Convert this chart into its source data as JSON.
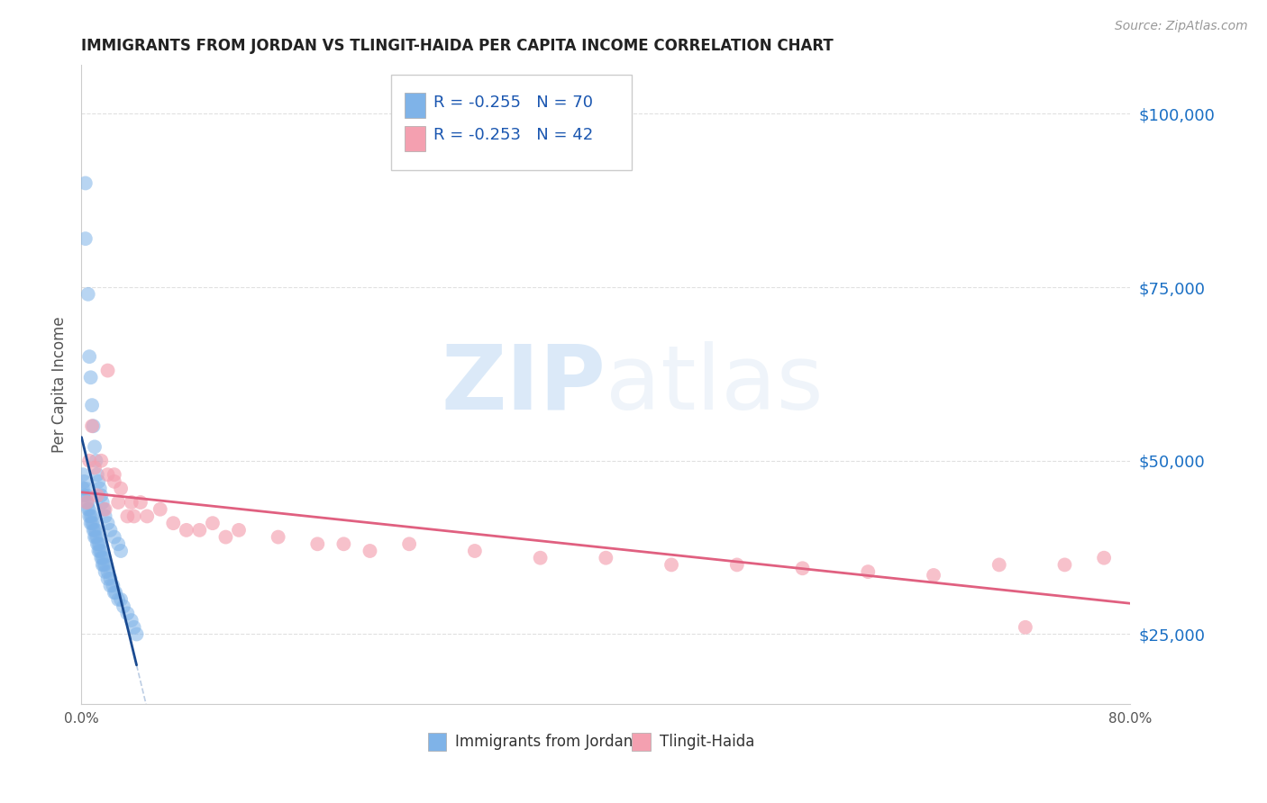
{
  "title": "IMMIGRANTS FROM JORDAN VS TLINGIT-HAIDA PER CAPITA INCOME CORRELATION CHART",
  "source": "Source: ZipAtlas.com",
  "ylabel": "Per Capita Income",
  "series1_label": "Immigrants from Jordan",
  "series2_label": "Tlingit-Haida",
  "series1_color": "#7fb3e8",
  "series2_color": "#f4a0b0",
  "series1_line_color": "#1a4a90",
  "series2_line_color": "#e06080",
  "series1_R": -0.255,
  "series1_N": 70,
  "series2_R": -0.253,
  "series2_N": 42,
  "legend_color": "#1a56b0",
  "background_color": "#ffffff",
  "grid_color": "#dddddd",
  "right_ytick_color": "#1a6fc4",
  "xlim": [
    0.0,
    0.8
  ],
  "ylim": [
    15000,
    107000
  ],
  "right_yticks": [
    25000,
    50000,
    75000,
    100000
  ],
  "right_yticklabels": [
    "$25,000",
    "$50,000",
    "$75,000",
    "$100,000"
  ],
  "jordan_x": [
    0.003,
    0.003,
    0.005,
    0.006,
    0.007,
    0.008,
    0.009,
    0.01,
    0.011,
    0.012,
    0.013,
    0.014,
    0.015,
    0.016,
    0.017,
    0.018,
    0.02,
    0.022,
    0.025,
    0.028,
    0.03,
    0.001,
    0.001,
    0.002,
    0.002,
    0.003,
    0.004,
    0.004,
    0.005,
    0.005,
    0.006,
    0.006,
    0.007,
    0.007,
    0.008,
    0.008,
    0.009,
    0.009,
    0.01,
    0.01,
    0.011,
    0.011,
    0.012,
    0.012,
    0.013,
    0.013,
    0.014,
    0.014,
    0.015,
    0.015,
    0.016,
    0.016,
    0.017,
    0.017,
    0.018,
    0.018,
    0.02,
    0.02,
    0.022,
    0.022,
    0.024,
    0.025,
    0.026,
    0.028,
    0.03,
    0.032,
    0.035,
    0.038,
    0.04,
    0.042
  ],
  "jordan_y": [
    90000,
    82000,
    74000,
    65000,
    62000,
    58000,
    55000,
    52000,
    50000,
    48000,
    47000,
    46000,
    45000,
    44000,
    43000,
    42000,
    41000,
    40000,
    39000,
    38000,
    37000,
    48000,
    46000,
    47000,
    45000,
    46000,
    44000,
    45000,
    43000,
    44000,
    43000,
    42000,
    42000,
    41000,
    41000,
    42000,
    40000,
    41000,
    40000,
    39000,
    39000,
    40000,
    38000,
    39000,
    38000,
    37000,
    37000,
    38000,
    36000,
    37000,
    36000,
    35000,
    35000,
    36000,
    34000,
    35000,
    34000,
    33000,
    33000,
    32000,
    32000,
    31000,
    31000,
    30000,
    30000,
    29000,
    28000,
    27000,
    26000,
    25000
  ],
  "tlingit_x": [
    0.004,
    0.006,
    0.008,
    0.01,
    0.012,
    0.015,
    0.018,
    0.02,
    0.025,
    0.028,
    0.03,
    0.035,
    0.038,
    0.04,
    0.045,
    0.05,
    0.06,
    0.07,
    0.08,
    0.09,
    0.1,
    0.11,
    0.12,
    0.15,
    0.18,
    0.2,
    0.22,
    0.25,
    0.3,
    0.35,
    0.4,
    0.45,
    0.5,
    0.55,
    0.6,
    0.65,
    0.7,
    0.72,
    0.75,
    0.78,
    0.02,
    0.025
  ],
  "tlingit_y": [
    44000,
    50000,
    55000,
    49000,
    45000,
    50000,
    43000,
    48000,
    47000,
    44000,
    46000,
    42000,
    44000,
    42000,
    44000,
    42000,
    43000,
    41000,
    40000,
    40000,
    41000,
    39000,
    40000,
    39000,
    38000,
    38000,
    37000,
    38000,
    37000,
    36000,
    36000,
    35000,
    35000,
    34500,
    34000,
    33500,
    35000,
    26000,
    35000,
    36000,
    63000,
    48000
  ]
}
